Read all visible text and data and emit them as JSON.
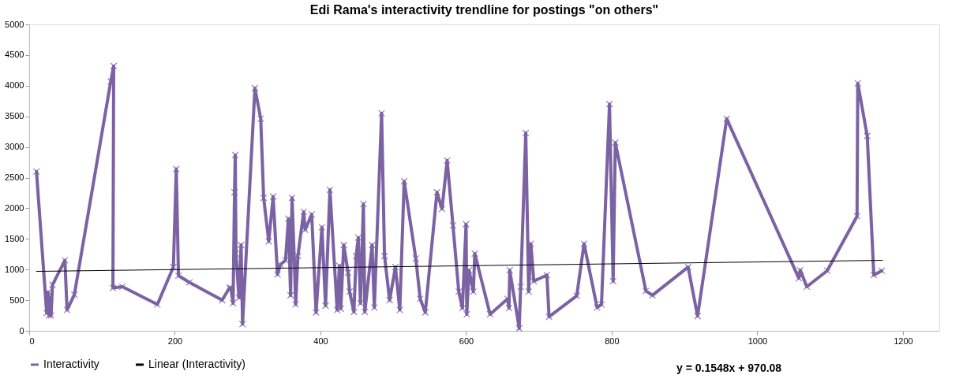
{
  "chart_data": {
    "type": "line",
    "title": "Edi Rama's interactivity trendline for postings \"on others\"",
    "xlim": [
      0,
      1250
    ],
    "xticks": [
      0,
      200,
      400,
      600,
      800,
      1000,
      1200
    ],
    "ylim": [
      0,
      5000
    ],
    "yticks": [
      0,
      500,
      1000,
      1500,
      2000,
      2500,
      3000,
      3500,
      4000,
      4500,
      5000
    ],
    "grid": false,
    "legend": "bottom",
    "marker": "cross",
    "line_style": "solid",
    "annotations": [
      "y = 0.1548x + 970.08"
    ],
    "series": [
      {
        "name": "Interactivity",
        "color": "#7b62a3",
        "x": [
          10,
          24,
          26,
          27,
          29,
          30,
          32,
          49,
          52,
          62,
          112,
          116,
          115,
          128,
          176,
          198,
          202,
          205,
          220,
          265,
          275,
          277,
          280,
          282,
          283,
          284,
          288,
          291,
          293,
          310,
          318,
          322,
          329,
          335,
          341,
          345,
          352,
          356,
          359,
          361,
          364,
          366,
          369,
          377,
          379,
          388,
          394,
          402,
          407,
          413,
          423,
          426,
          428,
          432,
          438,
          440,
          446,
          449,
          452,
          455,
          459,
          461,
          471,
          474,
          484,
          488,
          495,
          503,
          509,
          515,
          531,
          537,
          544,
          560,
          567,
          574,
          582,
          590,
          595,
          600,
          601,
          604,
          610,
          612,
          633,
          657,
          659,
          660,
          673,
          675,
          682,
          686,
          689,
          693,
          711,
          714,
          752,
          762,
          780,
          786,
          797,
          802,
          805,
          847,
          856,
          905,
          918,
          958,
          1057,
          1059,
          1068,
          1096,
          1137,
          1138,
          1151,
          1160,
          1171
        ],
        "values": [
          2600,
          290,
          630,
          250,
          540,
          250,
          750,
          1150,
          340,
          590,
          4070,
          4320,
          700,
          720,
          430,
          1040,
          2640,
          900,
          790,
          500,
          700,
          700,
          450,
          2260,
          2870,
          1260,
          540,
          1400,
          110,
          3960,
          3460,
          2170,
          1460,
          2190,
          920,
          1080,
          1150,
          1830,
          580,
          2170,
          1180,
          430,
          1220,
          1940,
          1650,
          1900,
          300,
          1690,
          410,
          2300,
          340,
          1060,
          360,
          1400,
          950,
          640,
          310,
          1220,
          1520,
          450,
          2070,
          310,
          1400,
          380,
          3550,
          1220,
          500,
          1040,
          340,
          2440,
          1180,
          520,
          300,
          2260,
          1990,
          2780,
          1720,
          640,
          370,
          1740,
          270,
          990,
          640,
          1260,
          270,
          520,
          370,
          990,
          40,
          720,
          3230,
          640,
          1420,
          810,
          910,
          230,
          570,
          1420,
          380,
          430,
          3700,
          810,
          3070,
          650,
          580,
          1040,
          240,
          3460,
          860,
          990,
          720,
          980,
          1870,
          4040,
          3180,
          910,
          980
        ]
      },
      {
        "name": "Linear (Interactivity)",
        "color": "#000000",
        "type": "line",
        "marker": "none",
        "x": [
          10,
          1172
        ],
        "values": [
          970,
          1150
        ]
      }
    ]
  }
}
